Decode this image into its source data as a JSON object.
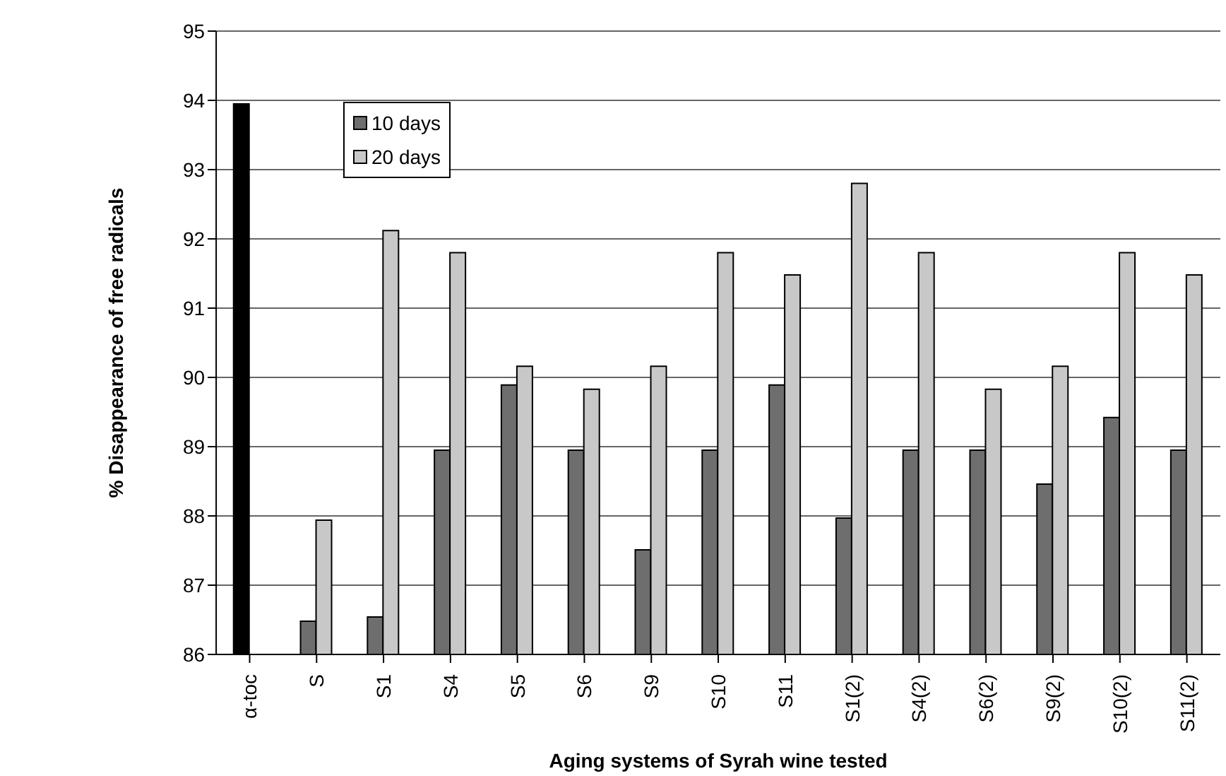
{
  "chart_data": {
    "type": "bar",
    "xlabel": "Aging systems of Syrah wine tested",
    "ylabel": "% Disappearance of free radicals",
    "categories": [
      "α-toc",
      "S",
      "S1",
      "S4",
      "S5",
      "S6",
      "S9",
      "S10",
      "S11",
      "S1(2)",
      "S4(2)",
      "S6(2)",
      "S9(2)",
      "S10(2)",
      "S11(2)"
    ],
    "series": [
      {
        "name": "10 days",
        "color": "#6e6e6e",
        "colors": [
          "#000000",
          "#6e6e6e",
          "#6e6e6e",
          "#6e6e6e",
          "#6e6e6e",
          "#6e6e6e",
          "#6e6e6e",
          "#6e6e6e",
          "#6e6e6e",
          "#6e6e6e",
          "#6e6e6e",
          "#6e6e6e",
          "#6e6e6e",
          "#6e6e6e",
          "#6e6e6e"
        ],
        "values": [
          93.95,
          86.48,
          86.54,
          88.95,
          89.89,
          88.95,
          87.51,
          88.95,
          89.89,
          87.97,
          88.95,
          88.95,
          88.46,
          89.42,
          88.95
        ]
      },
      {
        "name": "20 days",
        "color": "#c8c8c8",
        "values": [
          null,
          87.94,
          92.12,
          91.8,
          90.16,
          89.83,
          90.16,
          91.8,
          91.48,
          92.8,
          91.8,
          89.83,
          90.16,
          91.8,
          91.48
        ]
      }
    ],
    "ylim": [
      86,
      95
    ],
    "yticks": [
      86,
      87,
      88,
      89,
      90,
      91,
      92,
      93,
      94,
      95
    ],
    "grid": "y",
    "legend": "top left"
  }
}
